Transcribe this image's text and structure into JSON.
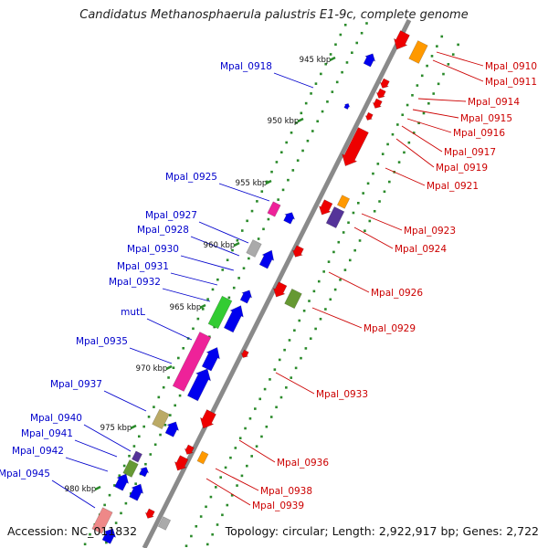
{
  "title": "Candidatus Methanosphaerula palustris E1-9c, complete genome",
  "footer": {
    "accession": "Accession: NC_011832",
    "topology": "Topology: circular; Length: 2,922,917 bp; Genes: 2,722"
  },
  "colors": {
    "forward_label": "#cc0000",
    "reverse_label": "#0000cc",
    "backbone": "#888888",
    "tick_major": "#2a8a2a",
    "tick_minor": "#2a8a2a"
  },
  "ticks": [
    "945 kbp",
    "950 kbp",
    "955 kbp",
    "960 kbp",
    "965 kbp",
    "970 kbp",
    "975 kbp",
    "980 kbp"
  ],
  "labels_left": [
    "Mpal_0918",
    "Mpal_0925",
    "Mpal_0927",
    "Mpal_0928",
    "Mpal_0930",
    "Mpal_0931",
    "Mpal_0932",
    "mutL",
    "Mpal_0935",
    "Mpal_0937",
    "Mpal_0940",
    "Mpal_0941",
    "Mpal_0942",
    "Mpal_0945"
  ],
  "labels_right": [
    "Mpal_0910",
    "Mpal_0911",
    "Mpal_0914",
    "Mpal_0915",
    "Mpal_0916",
    "Mpal_0917",
    "Mpal_0919",
    "Mpal_0921",
    "Mpal_0923",
    "Mpal_0924",
    "Mpal_0926",
    "Mpal_0929",
    "Mpal_0933",
    "Mpal_0936",
    "Mpal_0938",
    "Mpal_0939"
  ]
}
